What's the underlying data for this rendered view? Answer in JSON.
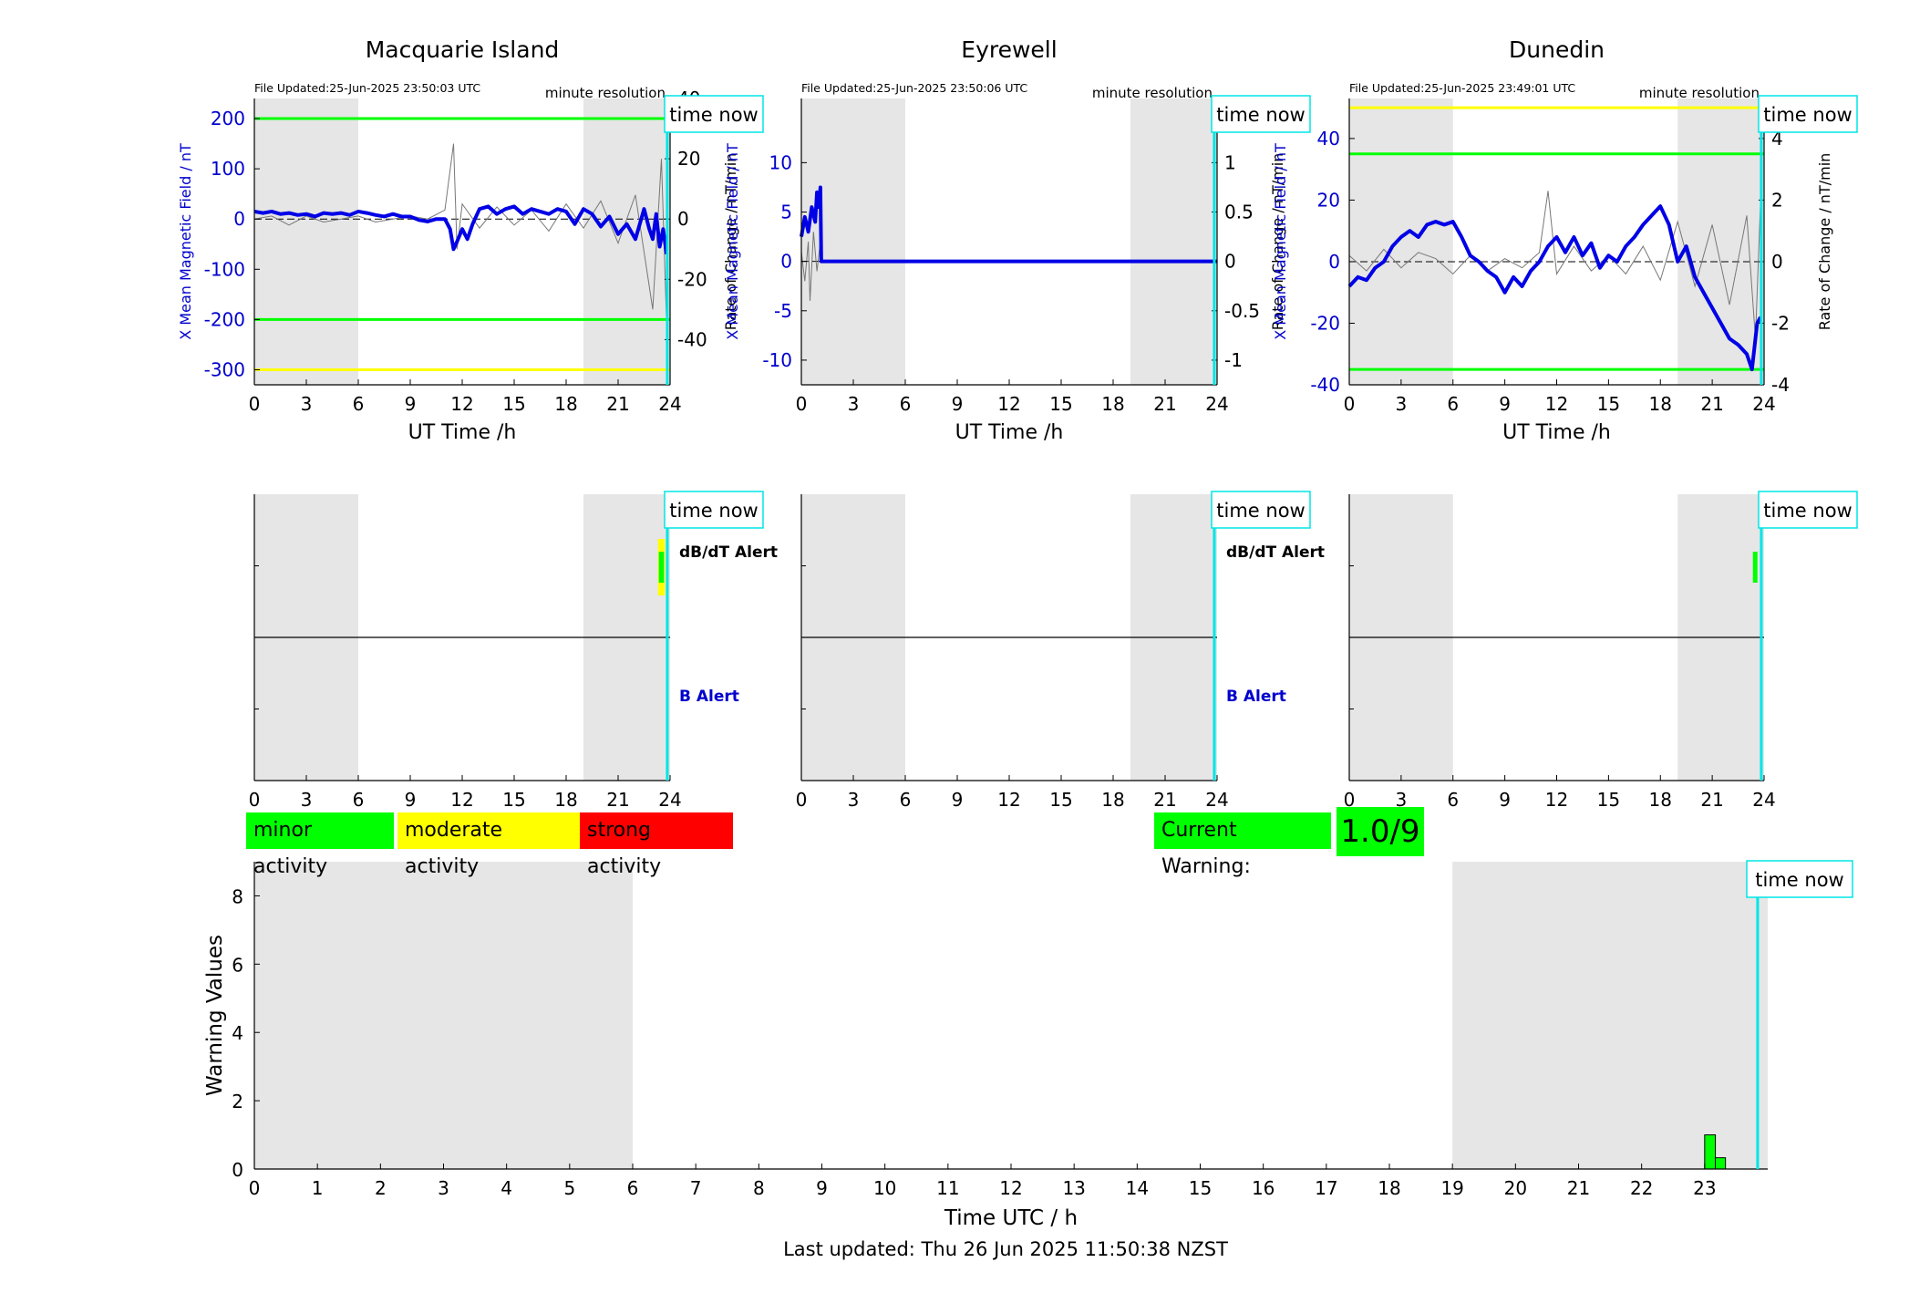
{
  "colors": {
    "b_line": "#0000e6",
    "rate_line": "#777777",
    "green": "#00ff00",
    "yellow": "#ffff00",
    "red": "#ff0000",
    "cyan": "#00e5e5",
    "night_shade": "#e6e6e6",
    "axis_blue": "#0000cc"
  },
  "legend": {
    "minor": "minor activity",
    "moderate": "moderate activity",
    "strong": "strong activity"
  },
  "current_warning": {
    "label": "Current Warning:",
    "value": "1.0/9"
  },
  "footer": {
    "last_updated": "Last updated: Thu 26 Jun 2025 11:50:38 NZST"
  },
  "chart_data": [
    {
      "type": "line",
      "title": "Macquarie Island",
      "file_updated": "File Updated:25-Jun-2025 23:50:03 UTC",
      "resolution": "minute resolution",
      "time_now_label": "time now",
      "xlabel": "UT Time /h",
      "ylabel": "X Mean Magnetic Field / nT",
      "ylabel_right": "Rate of Change / nT/min",
      "xlim": [
        0,
        24
      ],
      "xticks": [
        0,
        3,
        6,
        9,
        12,
        15,
        18,
        21,
        24
      ],
      "ylim": [
        -330,
        240
      ],
      "yticks": [
        -300,
        -200,
        -100,
        0,
        100,
        200
      ],
      "ylim_right": [
        -55,
        40
      ],
      "yticks_right": [
        -40,
        -20,
        0,
        20,
        40
      ],
      "shaded_hours": [
        [
          0,
          6
        ],
        [
          19,
          24
        ]
      ],
      "time_now": 23.84,
      "threshold_lines": [
        {
          "value": 200,
          "color": "green"
        },
        {
          "value": -200,
          "color": "green"
        },
        {
          "value": -300,
          "color": "yellow"
        }
      ],
      "series": [
        {
          "values_x": [
            0,
            0.5,
            1,
            1.5,
            2,
            2.5,
            3,
            3.5,
            4,
            4.5,
            5,
            5.5,
            6,
            6.5,
            7,
            7.5,
            8,
            8.5,
            9,
            9.5,
            10,
            10.5,
            11,
            11.3,
            11.5,
            11.7,
            12,
            12.3,
            12.6,
            13,
            13.5,
            14,
            14.5,
            15,
            15.5,
            16,
            16.5,
            17,
            17.5,
            18,
            18.5,
            19,
            19.5,
            20,
            20.5,
            21,
            21.5,
            22,
            22.5,
            22.8,
            23,
            23.2,
            23.4,
            23.6,
            23.8
          ],
          "values": [
            15,
            12,
            15,
            10,
            12,
            8,
            10,
            5,
            12,
            10,
            12,
            8,
            15,
            12,
            8,
            5,
            10,
            5,
            5,
            -2,
            -5,
            0,
            0,
            -20,
            -60,
            -45,
            -20,
            -40,
            -10,
            20,
            25,
            10,
            20,
            25,
            10,
            20,
            15,
            10,
            20,
            15,
            -10,
            20,
            10,
            -15,
            5,
            -30,
            -10,
            -40,
            20,
            -20,
            -40,
            10,
            -55,
            -20,
            -70
          ]
        },
        {
          "values_x": [
            0,
            1,
            2,
            3,
            4,
            5,
            6,
            7,
            8,
            9,
            10,
            11,
            11.5,
            11.7,
            12,
            13,
            14,
            15,
            16,
            17,
            18,
            19,
            20,
            21,
            22,
            23,
            23.5,
            23.8
          ],
          "values": [
            0,
            1,
            -2,
            1,
            -1,
            0,
            1,
            -1,
            0,
            1,
            0,
            3,
            25,
            -10,
            5,
            -3,
            4,
            -2,
            3,
            -4,
            5,
            -3,
            6,
            -8,
            8,
            -30,
            20,
            -35
          ]
        }
      ]
    },
    {
      "type": "line",
      "title": "Eyrewell",
      "file_updated": "File Updated:25-Jun-2025 23:50:06 UTC",
      "resolution": "minute resolution",
      "time_now_label": "time now",
      "xlabel": "UT Time /h",
      "ylabel": "X Mean Magnetic Field / nT",
      "ylabel_right": "Rate of Change / nT/min",
      "xlim": [
        0,
        24
      ],
      "xticks": [
        0,
        3,
        6,
        9,
        12,
        15,
        18,
        21,
        24
      ],
      "ylim": [
        -12.5,
        16.5
      ],
      "yticks": [
        -10,
        -5,
        0,
        5,
        10
      ],
      "ylim_right": [
        -1.25,
        1.65
      ],
      "yticks_right": [
        -1,
        -0.5,
        0,
        0.5,
        1
      ],
      "shaded_hours": [
        [
          0,
          6
        ],
        [
          19,
          24
        ]
      ],
      "time_now": 23.84,
      "threshold_lines": [],
      "series": [
        {
          "values_x": [
            0,
            0.2,
            0.4,
            0.6,
            0.8,
            0.9,
            1.0,
            1.1,
            1.15,
            1.2,
            24
          ],
          "values": [
            2.5,
            4.5,
            3,
            5.5,
            4,
            7,
            5.5,
            7.5,
            0,
            0,
            0
          ]
        },
        {
          "values_x": [
            0,
            0.2,
            0.4,
            0.5,
            0.7,
            0.9,
            1.1,
            1.2,
            24
          ],
          "values": [
            0.1,
            -0.2,
            0.2,
            -0.4,
            0.3,
            -0.1,
            0.2,
            0,
            0
          ]
        }
      ]
    },
    {
      "type": "line",
      "title": "Dunedin",
      "file_updated": "File Updated:25-Jun-2025 23:49:01 UTC",
      "resolution": "minute resolution",
      "time_now_label": "time now",
      "xlabel": "UT Time /h",
      "ylabel": "X Mean Magnetic Field / nT",
      "ylabel_right": "Rate of Change / nT/min",
      "xlim": [
        0,
        24
      ],
      "xticks": [
        0,
        3,
        6,
        9,
        12,
        15,
        18,
        21,
        24
      ],
      "ylim": [
        -40,
        53
      ],
      "yticks": [
        -40,
        -20,
        0,
        20,
        40
      ],
      "ylim_right": [
        -4,
        5.3
      ],
      "yticks_right": [
        -4,
        -2,
        0,
        2,
        4
      ],
      "shaded_hours": [
        [
          0,
          6
        ],
        [
          19,
          24
        ]
      ],
      "time_now": 23.84,
      "threshold_lines": [
        {
          "value": 50,
          "color": "yellow"
        },
        {
          "value": 35,
          "color": "green"
        },
        {
          "value": -35,
          "color": "green"
        }
      ],
      "series": [
        {
          "values_x": [
            0,
            0.5,
            1,
            1.5,
            2,
            2.5,
            3,
            3.5,
            4,
            4.5,
            5,
            5.5,
            6,
            6.5,
            7,
            7.5,
            8,
            8.5,
            9,
            9.5,
            10,
            10.5,
            11,
            11.5,
            12,
            12.5,
            13,
            13.5,
            14,
            14.5,
            15,
            15.5,
            16,
            16.5,
            17,
            17.5,
            18,
            18.5,
            19,
            19.5,
            20,
            20.5,
            21,
            21.5,
            22,
            22.5,
            23,
            23.3,
            23.6,
            23.8
          ],
          "values": [
            -8,
            -5,
            -6,
            -2,
            0,
            5,
            8,
            10,
            8,
            12,
            13,
            12,
            13,
            8,
            2,
            0,
            -3,
            -5,
            -10,
            -5,
            -8,
            -3,
            0,
            5,
            8,
            3,
            8,
            2,
            6,
            -2,
            2,
            0,
            5,
            8,
            12,
            15,
            18,
            12,
            0,
            5,
            -5,
            -10,
            -15,
            -20,
            -25,
            -27,
            -30,
            -35,
            -20,
            -18
          ]
        },
        {
          "values_x": [
            0,
            1,
            2,
            3,
            4,
            5,
            6,
            7,
            8,
            9,
            10,
            11,
            11.5,
            12,
            13,
            14,
            15,
            16,
            17,
            18,
            19,
            20,
            21,
            22,
            23,
            23.5,
            23.8
          ],
          "values": [
            0.2,
            -0.3,
            0.4,
            -0.2,
            0.3,
            0.1,
            -0.4,
            0.2,
            -0.3,
            0.1,
            -0.2,
            0.3,
            2.3,
            -0.4,
            0.5,
            -0.3,
            0.2,
            -0.4,
            0.5,
            -0.6,
            1.3,
            -0.8,
            1.2,
            -1.4,
            1.5,
            -2.5,
            2.0
          ]
        }
      ]
    },
    {
      "type": "bar",
      "subtype": "alert",
      "station": "Macquarie Island",
      "time_now_label": "time now",
      "dbdt_label": "dB/dT Alert",
      "b_label": "B Alert",
      "xlim": [
        0,
        24
      ],
      "xticks": [
        0,
        3,
        6,
        9,
        12,
        15,
        18,
        21,
        24
      ],
      "shaded_hours": [
        [
          0,
          6
        ],
        [
          19,
          24
        ]
      ],
      "time_now": 23.84,
      "dbdt_alerts": [
        {
          "start": 23.3,
          "end": 23.7,
          "level": "moderate"
        },
        {
          "start": 23.3,
          "end": 23.7,
          "level": "minor"
        }
      ],
      "b_alerts": []
    },
    {
      "type": "bar",
      "subtype": "alert",
      "station": "Eyrewell",
      "time_now_label": "time now",
      "dbdt_label": "dB/dT Alert",
      "b_label": "B Alert",
      "xlim": [
        0,
        24
      ],
      "xticks": [
        0,
        3,
        6,
        9,
        12,
        15,
        18,
        21,
        24
      ],
      "shaded_hours": [
        [
          0,
          6
        ],
        [
          19,
          24
        ]
      ],
      "time_now": 23.84,
      "dbdt_alerts": [],
      "b_alerts": []
    },
    {
      "type": "bar",
      "subtype": "alert",
      "station": "Dunedin",
      "time_now_label": "time now",
      "xlim": [
        0,
        24
      ],
      "xticks": [
        0,
        3,
        6,
        9,
        12,
        15,
        18,
        21,
        24
      ],
      "shaded_hours": [
        [
          0,
          6
        ],
        [
          19,
          24
        ]
      ],
      "time_now": 23.84,
      "dbdt_alerts": [
        {
          "start": 23.3,
          "end": 23.5,
          "level": "minor"
        }
      ],
      "b_alerts": []
    },
    {
      "type": "bar",
      "xlabel": "Time UTC / h",
      "ylabel": "Warning Values",
      "time_now_label": "time now",
      "xlim": [
        0,
        24
      ],
      "xticks": [
        0,
        1,
        2,
        3,
        4,
        5,
        6,
        7,
        8,
        9,
        10,
        11,
        12,
        13,
        14,
        15,
        16,
        17,
        18,
        19,
        20,
        21,
        22,
        23
      ],
      "ylim": [
        0,
        9
      ],
      "yticks": [
        0,
        2,
        4,
        6,
        8
      ],
      "shaded_hours": [
        [
          0,
          6
        ],
        [
          19,
          24
        ]
      ],
      "time_now": 23.84,
      "bars": [
        {
          "start": 23.0,
          "end": 23.17,
          "value": 1.0
        },
        {
          "start": 23.17,
          "end": 23.33,
          "value": 0.33
        }
      ]
    }
  ]
}
